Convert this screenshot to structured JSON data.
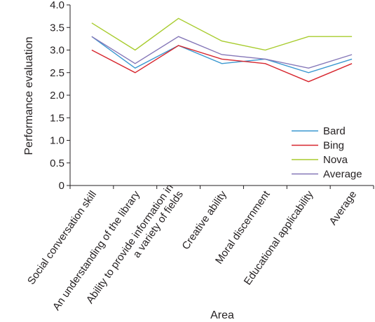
{
  "chart_data": {
    "type": "line",
    "xlabel": "Area",
    "ylabel": "Performance evaluation",
    "ylim": [
      0,
      4.0
    ],
    "yticks": [
      "0",
      "0.5",
      "1.0",
      "1.5",
      "2.0",
      "2.5",
      "3.0",
      "3.5",
      "4.0"
    ],
    "categories": [
      [
        "Social conversation skill"
      ],
      [
        "An understanding of the library"
      ],
      [
        "Ability to provide information in",
        "a variety of fields"
      ],
      [
        "Creative ability"
      ],
      [
        "Moral discernment"
      ],
      [
        "Educational applicability"
      ],
      [
        "Average"
      ]
    ],
    "series": [
      {
        "name": "Bard",
        "color": "#3a98d0",
        "values": [
          3.3,
          2.6,
          3.1,
          2.7,
          2.8,
          2.5,
          2.8
        ]
      },
      {
        "name": "Bing",
        "color": "#d7262e",
        "values": [
          3.0,
          2.5,
          3.1,
          2.8,
          2.7,
          2.3,
          2.7
        ]
      },
      {
        "name": "Nova",
        "color": "#a8cc2e",
        "values": [
          3.6,
          3.0,
          3.7,
          3.2,
          3.0,
          3.3,
          3.3
        ]
      },
      {
        "name": "Average",
        "color": "#8577b8",
        "values": [
          3.3,
          2.7,
          3.3,
          2.9,
          2.8,
          2.6,
          2.9
        ]
      }
    ],
    "legend_position": "right",
    "grid": false
  }
}
